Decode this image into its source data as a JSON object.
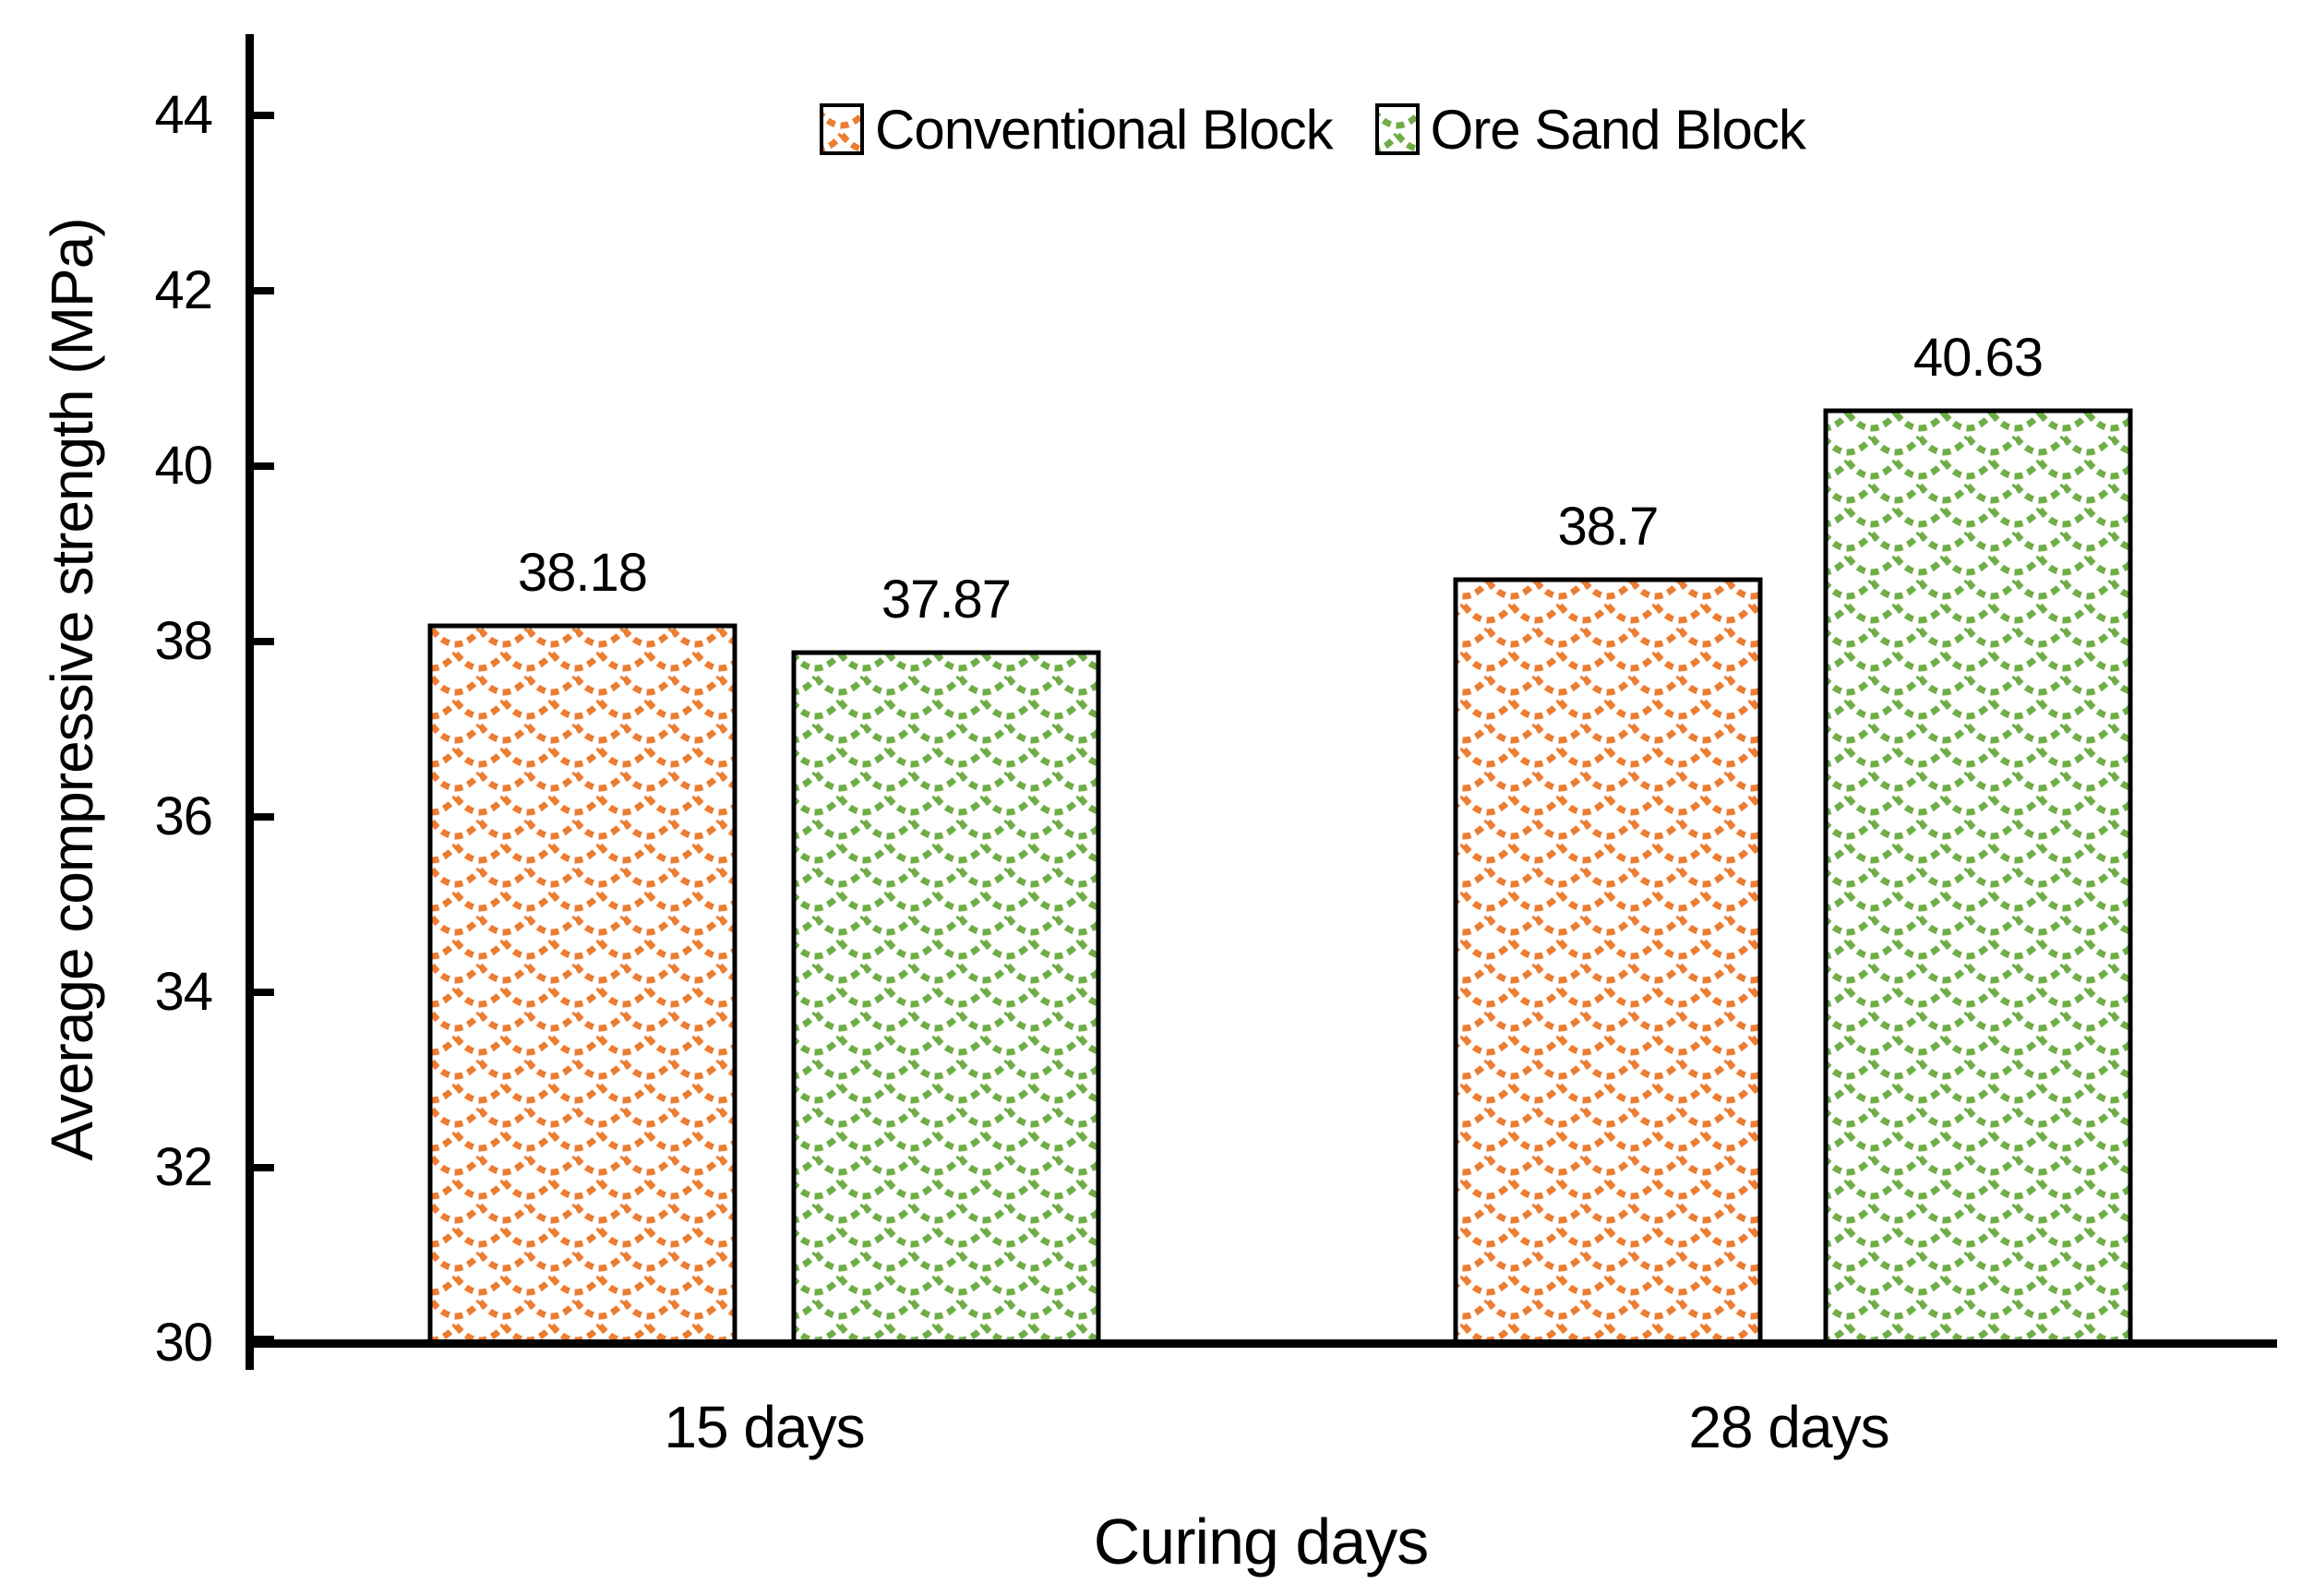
{
  "chart_data": {
    "type": "bar",
    "title": "",
    "xlabel": "Curing days",
    "ylabel": "Average compressive strength (MPa)",
    "categories": [
      "15 days",
      "28 days"
    ],
    "series": [
      {
        "name": "Conventional Block",
        "color": "#ED7D31",
        "pattern": "shingle",
        "values": [
          38.18,
          38.7
        ]
      },
      {
        "name": "Ore Sand Block",
        "color": "#70AD47",
        "pattern": "shingle",
        "values": [
          37.87,
          40.63
        ]
      }
    ],
    "bar_labels": [
      "38.18",
      "37.87",
      "38.7",
      "40.63"
    ],
    "ylim": [
      30,
      45
    ],
    "ytick_labels": [
      "44",
      "42",
      "40",
      "38",
      "36",
      "34",
      "32",
      "30"
    ],
    "ytick_values": [
      44,
      42,
      40,
      38,
      36,
      34,
      32,
      30
    ],
    "grid": false,
    "legend_position": "top-center",
    "axis_color": "#000000",
    "bar_border_color": "#000000",
    "background_color": "#FFFFFF"
  },
  "legend": {
    "items": [
      {
        "label": "Conventional Block",
        "swatch_icon": "orange-shingle-pattern-swatch"
      },
      {
        "label": "Ore Sand Block",
        "swatch_icon": "green-shingle-pattern-swatch"
      }
    ]
  }
}
